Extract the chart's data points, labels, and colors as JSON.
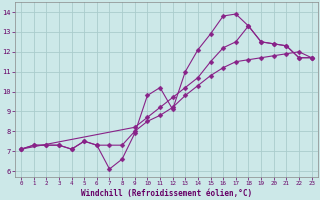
{
  "xlabel": "Windchill (Refroidissement éolien,°C)",
  "bg_color": "#cce8e8",
  "grid_color": "#aacccc",
  "line_color": "#882288",
  "xlim": [
    -0.5,
    23.5
  ],
  "ylim": [
    5.7,
    14.5
  ],
  "xticks": [
    0,
    1,
    2,
    3,
    4,
    5,
    6,
    7,
    8,
    9,
    10,
    11,
    12,
    13,
    14,
    15,
    16,
    17,
    18,
    19,
    20,
    21,
    22,
    23
  ],
  "yticks": [
    6,
    7,
    8,
    9,
    10,
    11,
    12,
    13,
    14
  ],
  "line1_x": [
    0,
    1,
    2,
    3,
    4,
    5,
    6,
    7,
    8,
    9,
    10,
    11,
    12,
    13,
    14,
    15,
    16,
    17,
    18,
    19,
    20,
    21,
    22,
    23
  ],
  "line1_y": [
    7.1,
    7.3,
    7.3,
    7.3,
    7.1,
    7.5,
    7.3,
    6.1,
    6.6,
    7.9,
    9.8,
    10.2,
    9.1,
    11.0,
    12.1,
    12.9,
    13.8,
    13.9,
    13.3,
    12.5,
    12.4,
    12.3,
    11.7,
    11.7
  ],
  "line2_x": [
    0,
    1,
    2,
    3,
    4,
    5,
    6,
    7,
    8,
    9,
    10,
    11,
    12,
    13,
    14,
    15,
    16,
    17,
    18,
    19,
    20,
    21,
    22,
    23
  ],
  "line2_y": [
    7.1,
    7.3,
    7.3,
    7.3,
    7.1,
    7.5,
    7.3,
    7.3,
    7.3,
    8.0,
    8.5,
    8.8,
    9.2,
    9.8,
    10.3,
    10.8,
    11.2,
    11.5,
    11.6,
    11.7,
    11.8,
    11.9,
    12.0,
    11.7
  ],
  "line3_x": [
    0,
    9,
    10,
    11,
    12,
    13,
    14,
    15,
    16,
    17,
    18,
    19,
    20,
    21,
    22,
    23
  ],
  "line3_y": [
    7.1,
    8.2,
    8.7,
    9.2,
    9.7,
    10.2,
    10.7,
    11.5,
    12.2,
    12.5,
    13.3,
    12.5,
    12.4,
    12.3,
    11.7,
    11.7
  ]
}
